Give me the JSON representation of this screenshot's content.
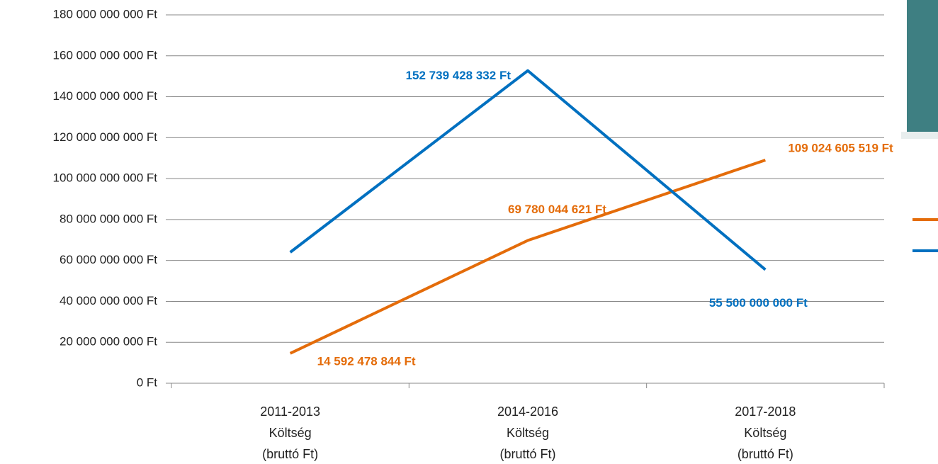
{
  "chart_data": {
    "type": "line",
    "categories": [
      "2011-2013\nKöltség\n(bruttó Ft)",
      "2014-2016\nKöltség\n(bruttó Ft)",
      "2017-2018\nKöltség\n(bruttó Ft)"
    ],
    "series": [
      {
        "color": "#e46c0a",
        "values": [
          14592478844,
          69780044621,
          109024605519
        ],
        "value_labels": [
          "14 592 478 844 Ft",
          "69 780 044 621 Ft",
          "109 024 605 519 Ft"
        ]
      },
      {
        "color": "#0070c0",
        "values": [
          64000000000,
          152739428332,
          55500000000
        ],
        "value_labels": [
          null,
          "152 739 428 332 Ft",
          "55 500 000 000 Ft"
        ]
      }
    ],
    "ylim": [
      0,
      180000000000
    ],
    "yticks": [
      {
        "value": 0,
        "label": "0 Ft"
      },
      {
        "value": 20000000000,
        "label": "20 000 000 000 Ft"
      },
      {
        "value": 40000000000,
        "label": "40 000 000 000 Ft"
      },
      {
        "value": 60000000000,
        "label": "60 000 000 000 Ft"
      },
      {
        "value": 80000000000,
        "label": "80 000 000 000 Ft"
      },
      {
        "value": 100000000000,
        "label": "100 000 000 000 Ft"
      },
      {
        "value": 120000000000,
        "label": "120 000 000 000 Ft"
      },
      {
        "value": 140000000000,
        "label": "140 000 000 000 Ft"
      },
      {
        "value": 160000000000,
        "label": "160 000 000 000 Ft"
      },
      {
        "value": 180000000000,
        "label": "180 000 000 000 Ft"
      }
    ],
    "grid": true
  }
}
